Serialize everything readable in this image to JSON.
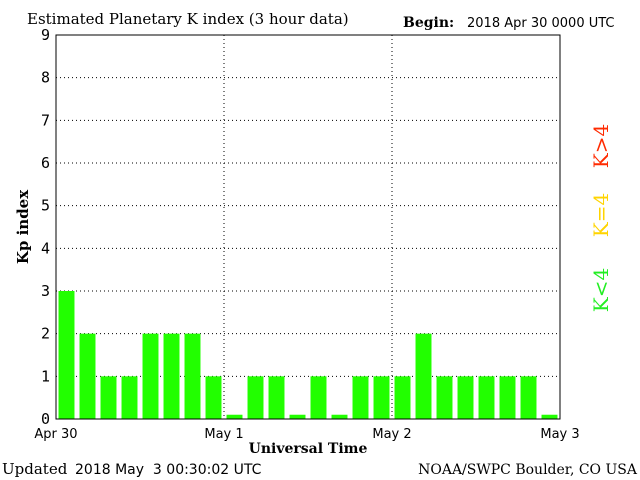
{
  "chart_data": {
    "type": "bar",
    "title": "Estimated Planetary K index (3 hour data)",
    "begin_label": "Begin:",
    "begin_value": "2018 Apr 30 0000 UTC",
    "ylabel": "Kp index",
    "xlabel": "Universal Time",
    "ylim": [
      0,
      9
    ],
    "y_ticks": [
      "0",
      "1",
      "2",
      "3",
      "4",
      "5",
      "6",
      "7",
      "8",
      "9"
    ],
    "x_ticks": [
      "Apr 30",
      "May 1",
      "May 2",
      "May 3"
    ],
    "grid": true,
    "values": [
      3,
      2,
      1,
      1,
      2,
      2,
      2,
      1,
      0.1,
      1,
      1,
      0.1,
      1,
      0.1,
      1,
      1,
      1,
      2,
      1,
      1,
      1,
      1,
      1,
      0.1
    ],
    "legend": [
      {
        "label": "K>4",
        "color": "#ff2a00"
      },
      {
        "label": "K=4",
        "color": "#ffd400"
      },
      {
        "label": "K<4",
        "color": "#22ee22"
      }
    ],
    "bar_color": "#22ff00"
  },
  "footer": {
    "updated_label": "Updated",
    "updated_value": "2018 May  3 00:30:02 UTC",
    "credit": "NOAA/SWPC Boulder, CO USA"
  }
}
